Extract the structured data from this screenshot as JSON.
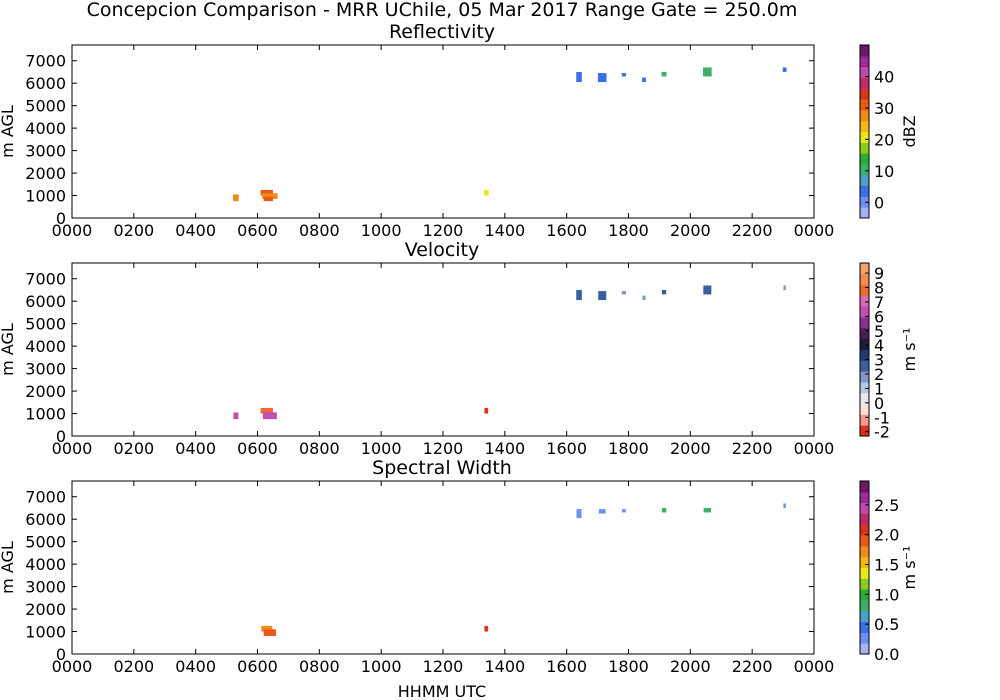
{
  "figure": {
    "title": "Concepcion Comparison - MRR UChile, 05 Mar 2017 Range Gate = 250.0m",
    "xlabel": "HHMM UTC"
  },
  "chart_data": [
    {
      "type": "heatmap",
      "title": "Reflectivity",
      "xlabel": "",
      "ylabel": "m AGL",
      "x_tick_labels": [
        "0000",
        "0200",
        "0400",
        "0600",
        "0800",
        "1000",
        "1200",
        "1400",
        "1600",
        "1800",
        "2000",
        "2200",
        "0000"
      ],
      "y_ticks": [
        0,
        1000,
        2000,
        3000,
        4000,
        5000,
        6000,
        7000
      ],
      "xlim_hours": [
        0,
        24
      ],
      "ylim": [
        0,
        7700
      ],
      "colorbar": {
        "label": "dBZ",
        "min": -5,
        "max": 50,
        "ticks": [
          0,
          10,
          20,
          30,
          40
        ],
        "tick_labels": [
          "0",
          "10",
          "20",
          "30",
          "40"
        ],
        "colors": [
          "#a5b4f0",
          "#6d8ff0",
          "#3a6fe6",
          "#4aa0c8",
          "#3bb06a",
          "#2aad32",
          "#8ccc1c",
          "#e8e81a",
          "#f5b813",
          "#f08a18",
          "#e8591a",
          "#d8331c",
          "#c02a6a",
          "#c04aaa",
          "#9b2a9a",
          "#6c1668"
        ]
      },
      "cells": [
        {
          "t": 5.3,
          "y0": 750,
          "y1": 1050,
          "v": 28,
          "w": 0.18
        },
        {
          "t": 6.3,
          "y0": 1000,
          "y1": 1250,
          "v": 30,
          "w": 0.4
        },
        {
          "t": 6.4,
          "y0": 850,
          "y1": 1100,
          "v": 29,
          "w": 0.5
        },
        {
          "t": 6.35,
          "y0": 750,
          "y1": 950,
          "v": 31,
          "w": 0.3
        },
        {
          "t": 13.4,
          "y0": 1000,
          "y1": 1250,
          "v": 22,
          "w": 0.16
        },
        {
          "t": 16.4,
          "y0": 6050,
          "y1": 6500,
          "v": 2,
          "w": 0.18
        },
        {
          "t": 17.15,
          "y0": 6050,
          "y1": 6450,
          "v": 3,
          "w": 0.28
        },
        {
          "t": 17.85,
          "y0": 6300,
          "y1": 6450,
          "v": 2,
          "w": 0.14
        },
        {
          "t": 18.5,
          "y0": 6050,
          "y1": 6250,
          "v": 2,
          "w": 0.12
        },
        {
          "t": 19.15,
          "y0": 6300,
          "y1": 6500,
          "v": 11,
          "w": 0.16
        },
        {
          "t": 20.55,
          "y0": 6300,
          "y1": 6700,
          "v": 12,
          "w": 0.28
        },
        {
          "t": 23.05,
          "y0": 6500,
          "y1": 6700,
          "v": 3,
          "w": 0.12
        }
      ]
    },
    {
      "type": "heatmap",
      "title": "Velocity",
      "xlabel": "",
      "ylabel": "m AGL",
      "x_tick_labels": [
        "0000",
        "0200",
        "0400",
        "0600",
        "0800",
        "1000",
        "1200",
        "1400",
        "1600",
        "1800",
        "2000",
        "2200",
        "0000"
      ],
      "y_ticks": [
        0,
        1000,
        2000,
        3000,
        4000,
        5000,
        6000,
        7000
      ],
      "xlim_hours": [
        0,
        24
      ],
      "ylim": [
        0,
        7700
      ],
      "colorbar": {
        "label": "m s⁻¹",
        "min": -2.3,
        "max": 9.7,
        "ticks": [
          -2,
          -1,
          0,
          1,
          2,
          3,
          4,
          5,
          6,
          7,
          8,
          9
        ],
        "tick_labels": [
          "-2",
          "-1",
          "0",
          "1",
          "2",
          "3",
          "4",
          "5",
          "6",
          "7",
          "8",
          "9"
        ],
        "colors": [
          "#e0301e",
          "#f29a8a",
          "#fbe0dc",
          "#e4e9f4",
          "#b9c7e3",
          "#7f98c8",
          "#3a5fa0",
          "#223a72",
          "#1c1c3c",
          "#4a1e55",
          "#8c2f8f",
          "#c24fb0",
          "#d86ab8",
          "#ee6a35",
          "#f58a4a",
          "#f6a06a"
        ]
      },
      "cells": [
        {
          "t": 5.3,
          "y0": 750,
          "y1": 1050,
          "v": 6.5,
          "w": 0.16
        },
        {
          "t": 6.3,
          "y0": 1000,
          "y1": 1250,
          "v": 8.0,
          "w": 0.4
        },
        {
          "t": 6.4,
          "y0": 750,
          "y1": 1050,
          "v": 6.0,
          "w": 0.45
        },
        {
          "t": 13.4,
          "y0": 1000,
          "y1": 1250,
          "v": -2.0,
          "w": 0.12
        },
        {
          "t": 16.4,
          "y0": 6050,
          "y1": 6500,
          "v": 2.5,
          "w": 0.18
        },
        {
          "t": 17.15,
          "y0": 6050,
          "y1": 6450,
          "v": 2.5,
          "w": 0.26
        },
        {
          "t": 17.85,
          "y0": 6300,
          "y1": 6450,
          "v": 2.0,
          "w": 0.14
        },
        {
          "t": 18.5,
          "y0": 6050,
          "y1": 6250,
          "v": 2.0,
          "w": 0.1
        },
        {
          "t": 19.15,
          "y0": 6300,
          "y1": 6500,
          "v": 2.5,
          "w": 0.14
        },
        {
          "t": 20.55,
          "y0": 6300,
          "y1": 6700,
          "v": 2.5,
          "w": 0.26
        },
        {
          "t": 23.05,
          "y0": 6500,
          "y1": 6700,
          "v": 1.5,
          "w": 0.08
        }
      ]
    },
    {
      "type": "heatmap",
      "title": "Spectral Width",
      "xlabel": "HHMM UTC",
      "ylabel": "m AGL",
      "x_tick_labels": [
        "0000",
        "0200",
        "0400",
        "0600",
        "0800",
        "1000",
        "1200",
        "1400",
        "1600",
        "1800",
        "2000",
        "2200",
        "0000"
      ],
      "y_ticks": [
        0,
        1000,
        2000,
        3000,
        4000,
        5000,
        6000,
        7000
      ],
      "xlim_hours": [
        0,
        24
      ],
      "ylim": [
        0,
        7700
      ],
      "colorbar": {
        "label": "m s⁻¹",
        "min": 0,
        "max": 2.9,
        "ticks": [
          0,
          0.5,
          1.0,
          1.5,
          2.0,
          2.5
        ],
        "tick_labels": [
          "0.0",
          "0.5",
          "1.0",
          "1.5",
          "2.0",
          "2.5"
        ],
        "colors": [
          "#a5b4f0",
          "#6d8ff0",
          "#3a6fe6",
          "#4aa0c8",
          "#3bb06a",
          "#2aad32",
          "#8ccc1c",
          "#e8e81a",
          "#f5b813",
          "#f08a18",
          "#e8591a",
          "#d8331c",
          "#c02a6a",
          "#c04aaa",
          "#9b2a9a",
          "#6c1668"
        ]
      },
      "cells": [
        {
          "t": 6.3,
          "y0": 1000,
          "y1": 1250,
          "v": 1.8,
          "w": 0.35
        },
        {
          "t": 6.4,
          "y0": 800,
          "y1": 1100,
          "v": 1.9,
          "w": 0.4
        },
        {
          "t": 13.4,
          "y0": 1000,
          "y1": 1250,
          "v": 2.1,
          "w": 0.12
        },
        {
          "t": 16.4,
          "y0": 6050,
          "y1": 6450,
          "v": 0.3,
          "w": 0.16
        },
        {
          "t": 17.15,
          "y0": 6250,
          "y1": 6450,
          "v": 0.3,
          "w": 0.22
        },
        {
          "t": 17.85,
          "y0": 6300,
          "y1": 6450,
          "v": 0.3,
          "w": 0.12
        },
        {
          "t": 19.15,
          "y0": 6300,
          "y1": 6500,
          "v": 0.8,
          "w": 0.14
        },
        {
          "t": 20.55,
          "y0": 6300,
          "y1": 6500,
          "v": 0.8,
          "w": 0.24
        },
        {
          "t": 23.05,
          "y0": 6500,
          "y1": 6700,
          "v": 0.3,
          "w": 0.08
        }
      ]
    }
  ]
}
